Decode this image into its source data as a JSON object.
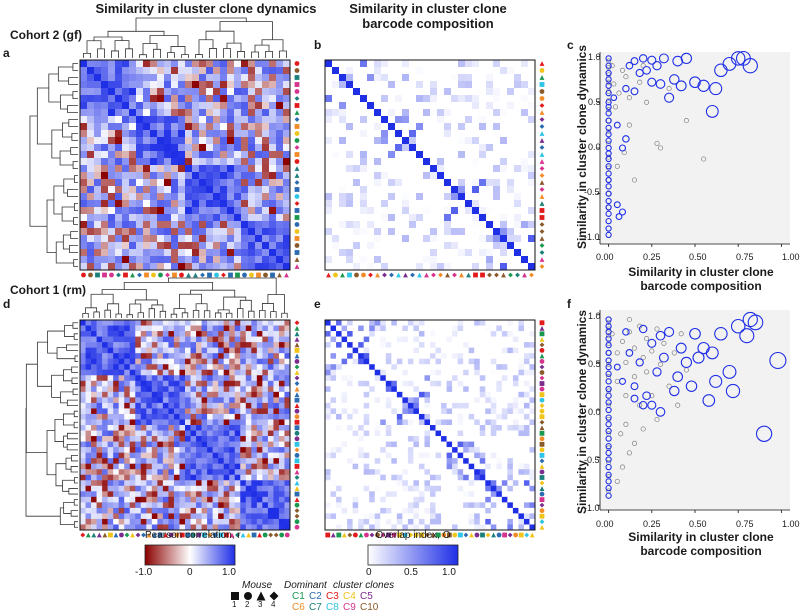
{
  "headers": {
    "left": "Similarity in cluster clone dynamics",
    "mid_line1": "Similarity in cluster clone",
    "mid_line2": "barcode composition"
  },
  "panel_labels": [
    "a",
    "b",
    "c",
    "d",
    "e",
    "f"
  ],
  "cohorts": {
    "top": "Cohort 2 (gf)",
    "bottom": "Cohort 1 (rm)"
  },
  "colorbars": {
    "pearson": {
      "label": "Pearson correlation, r",
      "ticks": [
        "-1.0",
        "0",
        "1.0"
      ],
      "range": [
        -1,
        1
      ],
      "colors": [
        "#8b0000",
        "#ffffff",
        "#1f2fe6"
      ]
    },
    "overlap": {
      "label": "Overlap index, O",
      "ticks": [
        "0",
        "0.5",
        "1.0"
      ],
      "range": [
        0,
        1
      ],
      "colors": [
        "#ffffff",
        "#1f2fe6"
      ]
    }
  },
  "legend": {
    "mouse_title": "Mouse",
    "mouse_markers": [
      {
        "shape": "square",
        "label": "1"
      },
      {
        "shape": "circle",
        "label": "2"
      },
      {
        "shape": "triangle",
        "label": "3"
      },
      {
        "shape": "diamond",
        "label": "4"
      }
    ],
    "clones_title_1": "Dominant",
    "clones_title_2": "cluster clones",
    "clones": [
      {
        "label": "C1",
        "color": "#1a9850"
      },
      {
        "label": "C2",
        "color": "#2b6cb0"
      },
      {
        "label": "C3",
        "color": "#e31a1c"
      },
      {
        "label": "C4",
        "color": "#f0c419"
      },
      {
        "label": "C5",
        "color": "#7b2d8e"
      },
      {
        "label": "C6",
        "color": "#f28c28"
      },
      {
        "label": "C7",
        "color": "#1b7f7a"
      },
      {
        "label": "C8",
        "color": "#2ec4e6"
      },
      {
        "label": "C9",
        "color": "#d6338f"
      },
      {
        "label": "C10",
        "color": "#8a5a2b"
      }
    ]
  },
  "chart_data": [
    {
      "id": "c",
      "type": "scatter",
      "xlabel": "Similarity in cluster clone barcode composition",
      "ylabel": "Similarity in cluster clone dynamics",
      "xlim": [
        -0.05,
        1.05
      ],
      "ylim": [
        -1.05,
        1.05
      ],
      "xticks": [
        "0.00",
        "0.25",
        "0.50",
        "0.75",
        "1.00"
      ],
      "yticks": [
        "-1.0",
        "-0.5",
        "0.0",
        "0.5",
        "1.0"
      ],
      "grid": false,
      "series": [
        {
          "color": "#808080",
          "points": [
            [
              0,
              0.95
            ],
            [
              0,
              0.88
            ],
            [
              0,
              0.8
            ],
            [
              0,
              0.72
            ],
            [
              0,
              0.62
            ],
            [
              0,
              0.52
            ],
            [
              0,
              0.42
            ],
            [
              0,
              0.3
            ],
            [
              0,
              0.18
            ],
            [
              0,
              0.05
            ],
            [
              0,
              -0.1
            ],
            [
              0,
              -0.22
            ],
            [
              0,
              -0.35
            ],
            [
              0,
              -0.5
            ],
            [
              0,
              -0.65
            ],
            [
              0.02,
              0.9
            ],
            [
              0.03,
              0.7
            ],
            [
              0.04,
              0.45
            ],
            [
              0.05,
              -0.2
            ],
            [
              0.06,
              0.6
            ],
            [
              0.08,
              0.85
            ],
            [
              0.1,
              0.78
            ],
            [
              0.12,
              0.55
            ],
            [
              0.15,
              -0.35
            ],
            [
              0.18,
              0.72
            ],
            [
              0.2,
              0.9
            ],
            [
              0.22,
              0.5
            ],
            [
              0.28,
              0.05
            ],
            [
              0.3,
              0.0
            ],
            [
              0.35,
              0.65
            ],
            [
              0.45,
              0.3
            ],
            [
              0.55,
              -0.12
            ],
            [
              0.12,
              0.25
            ],
            [
              0.09,
              -0.05
            ]
          ]
        },
        {
          "color": "#1f2fe6",
          "points": [
            [
              0,
              0.98
            ],
            [
              0,
              0.9
            ],
            [
              0,
              0.82
            ],
            [
              0,
              0.75
            ],
            [
              0,
              0.68
            ],
            [
              0,
              0.6
            ],
            [
              0,
              0.5
            ],
            [
              0,
              0.45
            ],
            [
              0,
              0.38
            ],
            [
              0,
              0.3
            ],
            [
              0,
              0.22
            ],
            [
              0,
              0.15
            ],
            [
              0,
              0.08
            ],
            [
              0,
              0.0
            ],
            [
              0,
              -0.06
            ],
            [
              0,
              -0.12
            ],
            [
              0,
              -0.2
            ],
            [
              0,
              -0.28
            ],
            [
              0,
              -0.35
            ],
            [
              0,
              -0.42
            ],
            [
              0,
              -0.5
            ],
            [
              0,
              -0.58
            ],
            [
              0,
              -0.65
            ],
            [
              0,
              -0.72
            ],
            [
              0,
              -0.8
            ],
            [
              0,
              -0.88
            ],
            [
              0,
              -0.95
            ],
            [
              0.03,
              0.55
            ],
            [
              0.05,
              0.25
            ],
            [
              0.05,
              -0.62
            ],
            [
              0.06,
              -0.75
            ],
            [
              0.08,
              -0.7
            ],
            [
              0.1,
              0.65
            ],
            [
              0.12,
              0.9
            ],
            [
              0.15,
              0.62
            ],
            [
              0.15,
              0.95
            ],
            [
              0.18,
              0.82
            ],
            [
              0.2,
              0.98
            ],
            [
              0.22,
              0.85
            ],
            [
              0.25,
              0.96
            ],
            [
              0.25,
              0.72
            ],
            [
              0.28,
              0.9
            ],
            [
              0.3,
              0.7
            ],
            [
              0.32,
              0.98
            ],
            [
              0.35,
              0.55
            ],
            [
              0.38,
              0.75
            ],
            [
              0.4,
              0.95
            ],
            [
              0.42,
              0.68
            ],
            [
              0.45,
              0.98
            ],
            [
              0.5,
              0.72
            ],
            [
              0.55,
              0.68
            ],
            [
              0.6,
              0.4
            ],
            [
              0.62,
              0.65
            ],
            [
              0.65,
              0.85
            ],
            [
              0.7,
              0.92
            ],
            [
              0.75,
              0.98
            ],
            [
              0.78,
              0.98
            ],
            [
              0.82,
              0.9
            ],
            [
              0.08,
              0.0
            ],
            [
              0.1,
              0.1
            ]
          ]
        }
      ]
    },
    {
      "id": "f",
      "type": "scatter",
      "xlabel": "Similarity in cluster clone barcode composition",
      "ylabel": "Similarity in cluster clone dynamics",
      "xlim": [
        -0.05,
        1.05
      ],
      "ylim": [
        -1.05,
        1.05
      ],
      "xticks": [
        "0.00",
        "0.25",
        "0.50",
        "0.75",
        "1.00"
      ],
      "yticks": [
        "-1.0",
        "-0.5",
        "0.0",
        "0.5",
        "1.0"
      ],
      "grid": false,
      "series": [
        {
          "color": "#808080",
          "points": [
            [
              0,
              0.92
            ],
            [
              0,
              0.85
            ],
            [
              0,
              0.78
            ],
            [
              0,
              0.7
            ],
            [
              0,
              0.6
            ],
            [
              0,
              0.48
            ],
            [
              0,
              0.35
            ],
            [
              0,
              0.2
            ],
            [
              0,
              0.05
            ],
            [
              0,
              -0.1
            ],
            [
              0,
              -0.25
            ],
            [
              0,
              -0.4
            ],
            [
              0,
              -0.55
            ],
            [
              0,
              -0.7
            ],
            [
              0,
              -0.85
            ],
            [
              0.02,
              0.8
            ],
            [
              0.05,
              0.6
            ],
            [
              0.05,
              0.3
            ],
            [
              0.07,
              -0.25
            ],
            [
              0.08,
              0.72
            ],
            [
              0.1,
              0.5
            ],
            [
              0.1,
              0.15
            ],
            [
              0.12,
              0.82
            ],
            [
              0.12,
              -0.45
            ],
            [
              0.15,
              0.65
            ],
            [
              0.15,
              0.35
            ],
            [
              0.18,
              0.88
            ],
            [
              0.18,
              0.05
            ],
            [
              0.2,
              0.55
            ],
            [
              0.2,
              -0.2
            ],
            [
              0.22,
              0.75
            ],
            [
              0.22,
              0.4
            ],
            [
              0.25,
              0.62
            ],
            [
              0.25,
              0.15
            ],
            [
              0.28,
              0.85
            ],
            [
              0.28,
              -0.1
            ],
            [
              0.3,
              0.48
            ],
            [
              0.32,
              0.7
            ],
            [
              0.35,
              0.25
            ],
            [
              0.38,
              0.6
            ],
            [
              0.4,
              0.05
            ],
            [
              0.42,
              0.8
            ],
            [
              0.45,
              0.42
            ],
            [
              0.12,
              0.95
            ],
            [
              0.08,
              -0.6
            ],
            [
              0.05,
              -0.75
            ],
            [
              0.15,
              -0.35
            ],
            [
              0.1,
              -0.15
            ]
          ]
        },
        {
          "color": "#1f2fe6",
          "points": [
            [
              0,
              0.95
            ],
            [
              0,
              0.88
            ],
            [
              0,
              0.82
            ],
            [
              0,
              0.75
            ],
            [
              0,
              0.68
            ],
            [
              0,
              0.6
            ],
            [
              0,
              0.52
            ],
            [
              0,
              0.45
            ],
            [
              0,
              0.38
            ],
            [
              0,
              0.3
            ],
            [
              0,
              0.22
            ],
            [
              0,
              0.15
            ],
            [
              0,
              0.08
            ],
            [
              0,
              0.0
            ],
            [
              0,
              -0.08
            ],
            [
              0,
              -0.15
            ],
            [
              0,
              -0.22
            ],
            [
              0,
              -0.3
            ],
            [
              0,
              -0.38
            ],
            [
              0,
              -0.45
            ],
            [
              0,
              -0.52
            ],
            [
              0,
              -0.6
            ],
            [
              0,
              -0.68
            ],
            [
              0,
              -0.75
            ],
            [
              0,
              -0.82
            ],
            [
              0,
              -0.9
            ],
            [
              0.05,
              0.45
            ],
            [
              0.08,
              0.3
            ],
            [
              0.1,
              0.82
            ],
            [
              0.12,
              0.6
            ],
            [
              0.15,
              0.25
            ],
            [
              0.18,
              0.5
            ],
            [
              0.2,
              0.85
            ],
            [
              0.22,
              0.15
            ],
            [
              0.25,
              0.7
            ],
            [
              0.25,
              0.05
            ],
            [
              0.28,
              0.4
            ],
            [
              0.3,
              0.78
            ],
            [
              0.3,
              -0.02
            ],
            [
              0.32,
              0.55
            ],
            [
              0.35,
              0.82
            ],
            [
              0.38,
              0.2
            ],
            [
              0.4,
              0.35
            ],
            [
              0.42,
              0.65
            ],
            [
              0.45,
              0.5
            ],
            [
              0.48,
              0.25
            ],
            [
              0.5,
              0.8
            ],
            [
              0.52,
              0.55
            ],
            [
              0.55,
              0.65
            ],
            [
              0.58,
              0.1
            ],
            [
              0.6,
              0.6
            ],
            [
              0.62,
              0.3
            ],
            [
              0.65,
              0.8
            ],
            [
              0.7,
              0.4
            ],
            [
              0.72,
              0.2
            ],
            [
              0.75,
              0.88
            ],
            [
              0.8,
              0.78
            ],
            [
              0.82,
              0.95
            ],
            [
              0.85,
              0.92
            ],
            [
              0.9,
              -0.25
            ],
            [
              0.98,
              0.52
            ],
            [
              0.2,
              0.05
            ],
            [
              0.15,
              0.12
            ]
          ]
        }
      ]
    }
  ]
}
